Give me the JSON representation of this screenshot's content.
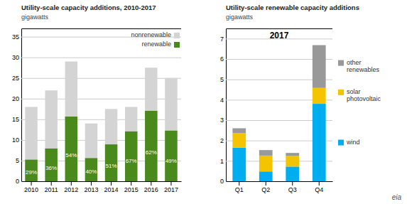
{
  "chart_data": [
    {
      "type": "bar",
      "title": "Utility-scale capacity additions, 2010-2017",
      "subtitle": "gigawatts",
      "categories": [
        "2010",
        "2011",
        "2012",
        "2013",
        "2014",
        "2015",
        "2016",
        "2017"
      ],
      "series": [
        {
          "name": "nonrenewable",
          "color": "#d4d4d4",
          "values": [
            18.0,
            22.0,
            29.0,
            14.0,
            17.5,
            18.0,
            27.5,
            25.0
          ]
        },
        {
          "name": "renewable",
          "color": "#4a8a1c",
          "values": [
            5.22,
            7.92,
            15.66,
            5.6,
            8.925,
            12.06,
            17.05,
            12.25
          ],
          "share_labels": [
            "29%",
            "36%",
            "54%",
            "40%",
            "51%",
            "67%",
            "62%",
            "49%"
          ]
        }
      ],
      "stacked": false,
      "ylim": [
        0,
        37
      ],
      "yticks": [
        0,
        5,
        10,
        15,
        20,
        25,
        30,
        35
      ],
      "grid": true,
      "legend": "upper right"
    },
    {
      "type": "bar",
      "title": "Utility-scale renewable capacity additions",
      "subtitle": "gigawatts",
      "annotation": "2017",
      "logo_text": "eia",
      "categories": [
        "Q1",
        "Q2",
        "Q3",
        "Q4"
      ],
      "series": [
        {
          "name": "wind",
          "color": "#00aeef",
          "values": [
            1.65,
            0.48,
            0.72,
            3.8
          ]
        },
        {
          "name": "solar photovoltaic",
          "color": "#f5c400",
          "values": [
            0.72,
            0.78,
            0.52,
            0.78
          ]
        },
        {
          "name": "other renewables",
          "color": "#999999",
          "values": [
            0.23,
            0.27,
            0.15,
            2.1
          ]
        }
      ],
      "stacked": true,
      "ylim": [
        0,
        7.5
      ],
      "yticks": [
        0,
        1,
        2,
        3,
        4,
        5,
        6,
        7
      ],
      "grid": true,
      "legend": "right"
    }
  ]
}
